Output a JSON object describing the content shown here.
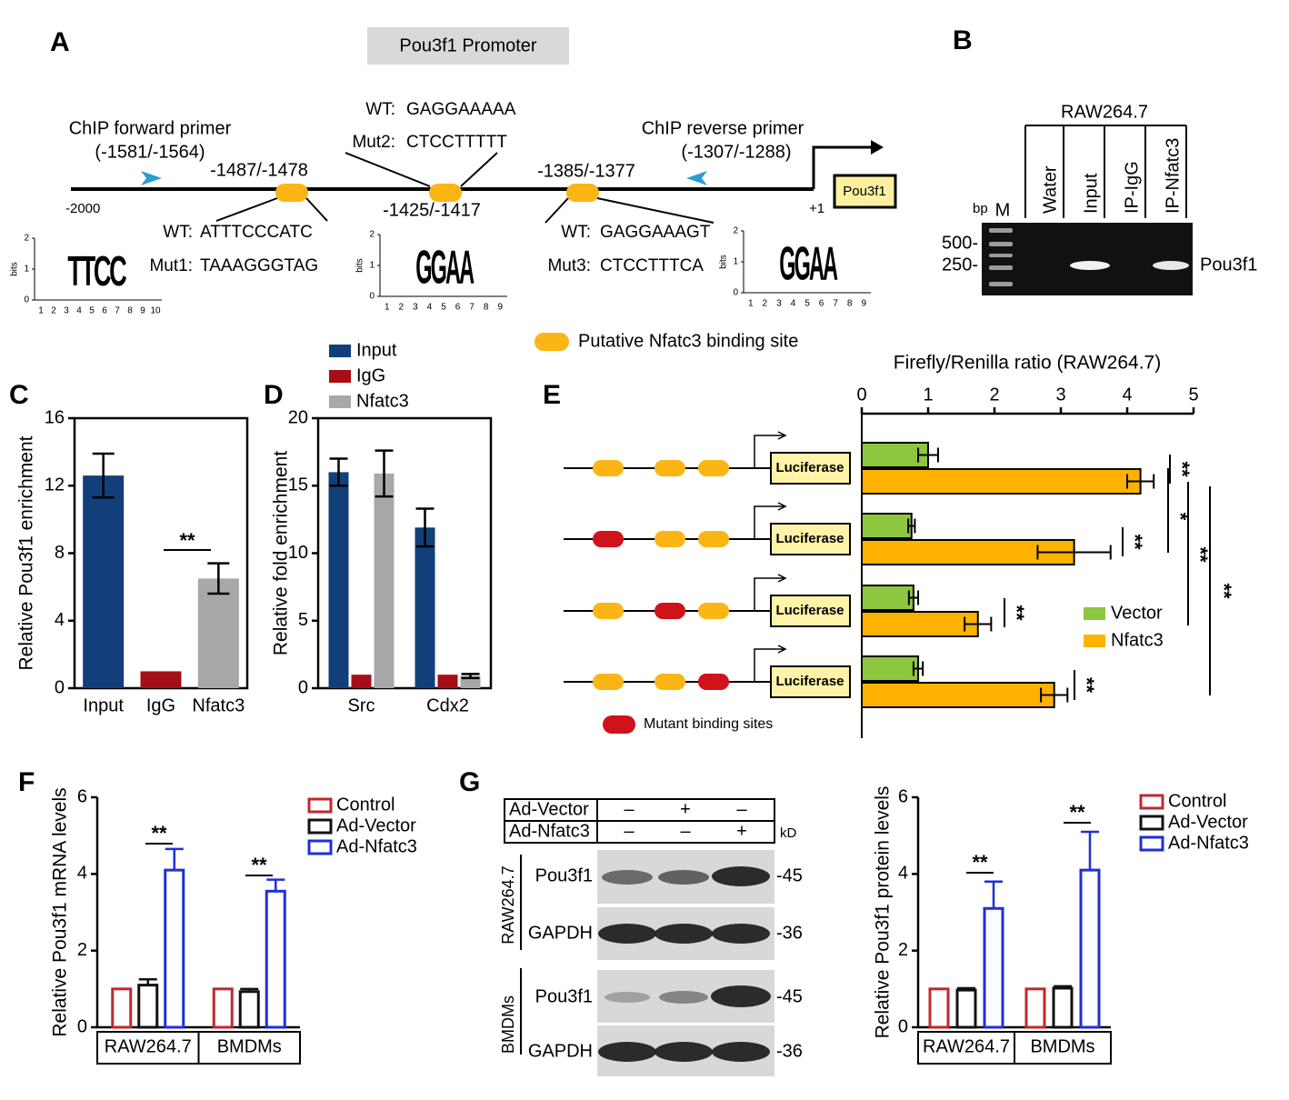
{
  "panel_labels": [
    "A",
    "B",
    "C",
    "D",
    "E",
    "F",
    "G"
  ],
  "promoter": {
    "title": "Pou3f1 Promoter",
    "forward_primer": "ChIP forward primer",
    "forward_range": "(-1581/-1564)",
    "reverse_primer": "ChIP reverse primer",
    "reverse_range": "(-1307/-1288)",
    "start": "-2000",
    "tss": "+1",
    "gene": "Pou3f1",
    "sites": [
      {
        "position": "-1487/-1478",
        "wt_label": "WT:",
        "wt": "ATTTCCCATC",
        "mut_label": "Mut1:",
        "mut": "TAAAGGGTAG"
      },
      {
        "position": "-1425/-1417",
        "wt_label": "WT:",
        "wt": "GAGGAAAAA",
        "mut_label": "Mut2:",
        "mut": "CTCCTTTTT"
      },
      {
        "position": "-1385/-1377",
        "wt_label": "WT:",
        "wt": "GAGGAAAGT",
        "mut_label": "Mut3:",
        "mut": "CTCCTTTCA"
      }
    ],
    "logo_axis": {
      "label": "bits",
      "ticks": [
        0,
        1,
        2
      ]
    },
    "logos": [
      {
        "motif": "TTCC",
        "positions": [
          1,
          2,
          3,
          4,
          5,
          6,
          7,
          8,
          9,
          10
        ]
      },
      {
        "motif": "GGAA",
        "positions": [
          1,
          2,
          3,
          4,
          5,
          6,
          7,
          8,
          9
        ]
      },
      {
        "motif": "GGAA",
        "positions": [
          1,
          2,
          3,
          4,
          5,
          6,
          7,
          8,
          9
        ]
      }
    ],
    "legend": "Putative Nfatc3 binding site"
  },
  "gel": {
    "title": "RAW264.7",
    "unit": "bp",
    "marker": "M",
    "lanes": [
      "Water",
      "Input",
      "IP-IgG",
      "IP-Nfatc3"
    ],
    "sizes": [
      "500-",
      "250-"
    ],
    "band": "Pou3f1"
  },
  "luciferase": {
    "reporter": "Luciferase",
    "mutant_legend": "Mutant binding sites",
    "constructs": [
      [
        false,
        false,
        false
      ],
      [
        true,
        false,
        false
      ],
      [
        false,
        true,
        false
      ],
      [
        false,
        false,
        true
      ]
    ]
  },
  "western": {
    "rows": [
      {
        "label": "Ad-Vector",
        "marks": [
          "–",
          "+",
          "–"
        ]
      },
      {
        "label": "Ad-Nfatc3",
        "marks": [
          "–",
          "–",
          "+"
        ]
      }
    ],
    "unit": "kD",
    "groups": [
      {
        "name": "RAW264.7",
        "blots": [
          {
            "label": "Pou3f1",
            "size": "-45"
          },
          {
            "label": "GAPDH",
            "size": "-36"
          }
        ]
      },
      {
        "name": "BMDMs",
        "blots": [
          {
            "label": "Pou3f1",
            "size": "-45"
          },
          {
            "label": "GAPDH",
            "size": "-36"
          }
        ]
      }
    ]
  },
  "chart_data": [
    {
      "type": "bar",
      "ylabel": "Relative Pou3f1 enrichment",
      "categories": [
        "Input",
        "IgG",
        "Nfatc3"
      ],
      "values": [
        12.6,
        1,
        6.5
      ],
      "errors": [
        1.3,
        0,
        0.9
      ],
      "colors": [
        "#123f7a",
        "#a50f15",
        "#a8a8aa"
      ],
      "ylim": [
        0,
        16
      ],
      "yticks": [
        0,
        4,
        8,
        12,
        16
      ],
      "significance": [
        "**"
      ]
    },
    {
      "type": "bar",
      "ylabel": "Relative fold enrichment",
      "categories": [
        "Src",
        "Cdx2"
      ],
      "series": [
        {
          "name": "Input",
          "color": "#123f7a",
          "values": [
            16,
            11.9
          ],
          "errors": [
            1,
            1.4
          ]
        },
        {
          "name": "IgG",
          "color": "#a50f15",
          "values": [
            1,
            1
          ],
          "errors": [
            0,
            0
          ]
        },
        {
          "name": "Nfatc3",
          "color": "#a8a8aa",
          "values": [
            15.9,
            0.9
          ],
          "errors": [
            1.7,
            0.15
          ]
        }
      ],
      "ylim": [
        0,
        20
      ],
      "yticks": [
        0,
        5,
        10,
        15,
        20
      ]
    },
    {
      "type": "hbar",
      "title": "Firefly/Renilla ratio (RAW264.7)",
      "categories": [
        null,
        null,
        null,
        null
      ],
      "series": [
        {
          "name": "Vector",
          "color": "#8dc63f",
          "values": [
            1.0,
            0.75,
            0.78,
            0.85
          ],
          "errors": [
            0.15,
            0.05,
            0.07,
            0.07
          ]
        },
        {
          "name": "Nfatc3",
          "color": "#ffb300",
          "values": [
            4.2,
            3.2,
            1.75,
            2.9
          ],
          "errors": [
            0.2,
            0.55,
            0.2,
            0.2
          ]
        }
      ],
      "xlim": [
        0,
        5
      ],
      "xticks": [
        0,
        1,
        2,
        3,
        4,
        5
      ],
      "significance": [
        "**",
        "**",
        "**",
        "**",
        "*",
        "**",
        "**"
      ]
    },
    {
      "type": "bar",
      "ylabel": "Relative Pou3f1 mRNA levels",
      "categories": [
        "RAW264.7",
        "BMDMs"
      ],
      "series": [
        {
          "name": "Control",
          "color": "#c0282d",
          "values": [
            1,
            1
          ],
          "errors": [
            0,
            0
          ]
        },
        {
          "name": "Ad-Vector",
          "color": "#111111",
          "values": [
            1.1,
            0.93
          ],
          "errors": [
            0.15,
            0.07
          ]
        },
        {
          "name": "Ad-Nfatc3",
          "color": "#1f2fd6",
          "values": [
            4.1,
            3.55
          ],
          "errors": [
            0.55,
            0.3
          ]
        }
      ],
      "ylim": [
        0,
        6
      ],
      "yticks": [
        0,
        2,
        4,
        6
      ],
      "significance": [
        "**",
        "**"
      ]
    },
    {
      "type": "bar",
      "ylabel": "Relative Pou3f1 protein levels",
      "categories": [
        "RAW264.7",
        "BMDMs"
      ],
      "series": [
        {
          "name": "Control",
          "color": "#c0282d",
          "values": [
            1,
            1
          ],
          "errors": [
            0,
            0
          ]
        },
        {
          "name": "Ad-Vector",
          "color": "#111111",
          "values": [
            0.97,
            1.02
          ],
          "errors": [
            0.05,
            0.05
          ]
        },
        {
          "name": "Ad-Nfatc3",
          "color": "#1f2fd6",
          "values": [
            3.1,
            4.1
          ],
          "errors": [
            0.7,
            1.0
          ]
        }
      ],
      "ylim": [
        0,
        6
      ],
      "yticks": [
        0,
        2,
        4,
        6
      ],
      "significance": [
        "**",
        "**"
      ]
    }
  ]
}
